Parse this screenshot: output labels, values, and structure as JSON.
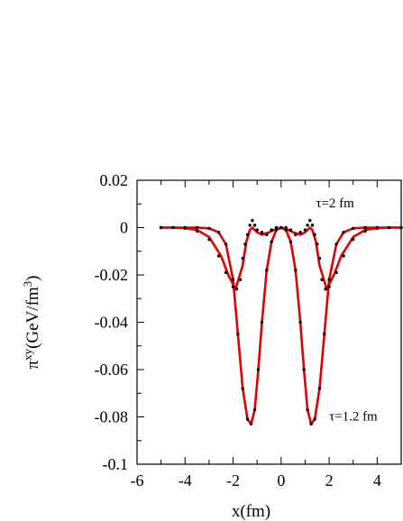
{
  "chart_data": {
    "type": "line",
    "title": "",
    "xlabel": "x(fm)",
    "ylabel": "π^xy(GeV/fm³)",
    "xlim": [
      -6,
      5
    ],
    "ylim": [
      -0.1,
      0.02
    ],
    "x_ticks": [
      "-6",
      "-4",
      "-2",
      "0",
      "2",
      "4"
    ],
    "y_ticks": [
      "0.02",
      "0",
      "-0.02",
      "-0.04",
      "-0.06",
      "-0.08",
      "-0.1"
    ],
    "annotations": [
      {
        "text": "τ=2 fm"
      },
      {
        "text": "τ=1.2 fm"
      }
    ],
    "series": [
      {
        "color": "#e00000",
        "style": "solid",
        "x": [
          -5,
          -4.5,
          -4,
          -3.5,
          -3,
          -2.5,
          -2.2,
          -1.9,
          -1.6,
          -1.45,
          -1.3,
          -1.2,
          -1.1,
          -1.0,
          -0.8,
          -0.5,
          -0.3,
          0,
          0.3,
          0.5,
          0.8,
          1.0,
          1.1,
          1.2,
          1.3,
          1.45,
          1.6,
          1.9,
          2.2,
          2.5,
          3,
          3.5,
          4,
          4.5,
          5
        ],
        "y": [
          0,
          0,
          -0.0002,
          -0.001,
          -0.004,
          -0.012,
          -0.02,
          -0.026,
          -0.016,
          -0.006,
          -0.001,
          0,
          -0.001,
          -0.002,
          -0.003,
          -0.002,
          -0.001,
          0,
          -0.001,
          -0.002,
          -0.003,
          -0.002,
          -0.001,
          0,
          -0.001,
          -0.006,
          -0.016,
          -0.026,
          -0.02,
          -0.012,
          -0.004,
          -0.001,
          -0.0002,
          0,
          0
        ]
      },
      {
        "color": "#e00000",
        "style": "solid",
        "x": [
          -5,
          -4,
          -3.5,
          -3,
          -2.6,
          -2.3,
          -2.0,
          -1.8,
          -1.6,
          -1.4,
          -1.25,
          -1.1,
          -0.95,
          -0.8,
          -0.6,
          -0.4,
          -0.2,
          0,
          0.2,
          0.4,
          0.6,
          0.8,
          0.95,
          1.1,
          1.25,
          1.4,
          1.6,
          1.8,
          2.0,
          2.3,
          2.6,
          3,
          3.5,
          4,
          5
        ],
        "y": [
          0,
          0,
          0,
          -0.0003,
          -0.002,
          -0.007,
          -0.022,
          -0.045,
          -0.068,
          -0.081,
          -0.083,
          -0.077,
          -0.06,
          -0.04,
          -0.018,
          -0.006,
          -0.001,
          0,
          -0.001,
          -0.006,
          -0.018,
          -0.04,
          -0.06,
          -0.077,
          -0.083,
          -0.081,
          -0.068,
          -0.045,
          -0.022,
          -0.007,
          -0.002,
          -0.0003,
          0,
          0,
          0
        ]
      },
      {
        "color": "#000000",
        "style": "dotted",
        "x": [
          -5,
          -4.5,
          -4,
          -3.5,
          -3,
          -2.6,
          -2.3,
          -2.0,
          -1.85,
          -1.7,
          -1.6,
          -1.5,
          -1.4,
          -1.3,
          -1.2,
          -1.1,
          -1.0,
          -0.8,
          -0.6,
          -0.4,
          -0.2,
          0,
          0.2,
          0.4,
          0.6,
          0.8,
          1.0,
          1.1,
          1.2,
          1.3,
          1.4,
          1.5,
          1.6,
          1.7,
          1.85,
          2.0,
          2.3,
          2.6,
          3,
          3.5,
          4,
          4.5,
          5
        ],
        "y": [
          0,
          0,
          -0.0003,
          -0.0015,
          -0.005,
          -0.012,
          -0.019,
          -0.025,
          -0.026,
          -0.022,
          -0.013,
          -0.007,
          -0.003,
          0.001,
          0.003,
          0.001,
          -0.001,
          -0.002,
          -0.003,
          -0.001,
          0,
          0,
          0,
          -0.001,
          -0.003,
          -0.002,
          -0.001,
          0.001,
          0.003,
          0.001,
          -0.003,
          -0.007,
          -0.013,
          -0.022,
          -0.026,
          -0.025,
          -0.019,
          -0.012,
          -0.005,
          -0.0015,
          -0.0003,
          0,
          0
        ]
      },
      {
        "color": "#000000",
        "style": "dotted",
        "x": [
          -5,
          -4,
          -3.5,
          -3,
          -2.6,
          -2.3,
          -2.0,
          -1.8,
          -1.6,
          -1.4,
          -1.25,
          -1.1,
          -0.95,
          -0.8,
          -0.6,
          -0.4,
          -0.2,
          0,
          0.2,
          0.4,
          0.6,
          0.8,
          0.95,
          1.1,
          1.25,
          1.4,
          1.6,
          1.8,
          2.0,
          2.3,
          2.6,
          3,
          3.5,
          4,
          5
        ],
        "y": [
          0,
          0,
          0,
          -0.0003,
          -0.002,
          -0.007,
          -0.022,
          -0.045,
          -0.068,
          -0.081,
          -0.083,
          -0.077,
          -0.06,
          -0.04,
          -0.018,
          -0.006,
          -0.001,
          0,
          -0.001,
          -0.006,
          -0.018,
          -0.04,
          -0.06,
          -0.077,
          -0.083,
          -0.081,
          -0.068,
          -0.045,
          -0.022,
          -0.007,
          -0.002,
          -0.0003,
          0,
          0,
          0
        ]
      }
    ]
  }
}
